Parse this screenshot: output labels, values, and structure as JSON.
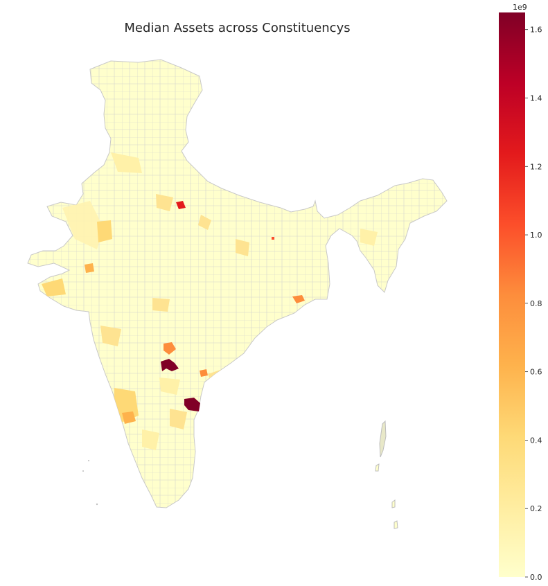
{
  "title": "Median Assets across Constituencys",
  "colorbar": {
    "offset_label": "1e9",
    "ticks": [
      {
        "value": 0.0,
        "label": "0.0"
      },
      {
        "value": 0.2,
        "label": "0.2"
      },
      {
        "value": 0.4,
        "label": "0.4"
      },
      {
        "value": 0.6,
        "label": "0.6"
      },
      {
        "value": 0.8,
        "label": "0.8"
      },
      {
        "value": 1.0,
        "label": "1.0"
      },
      {
        "value": 1.2,
        "label": "1.2"
      },
      {
        "value": 1.4,
        "label": "1.4"
      },
      {
        "value": 1.6,
        "label": "1.6"
      }
    ],
    "min": 0.0,
    "max": 1.65,
    "colormap": [
      "#ffffcc",
      "#ffeda0",
      "#fed976",
      "#feb24c",
      "#fd8d3c",
      "#fc4e2a",
      "#e31a1c",
      "#bd0026",
      "#800026"
    ]
  },
  "map_style": {
    "base_fill": "#ffffcc",
    "border_color": "#c8c8c8",
    "islands_color": "#bdbdbd"
  }
}
